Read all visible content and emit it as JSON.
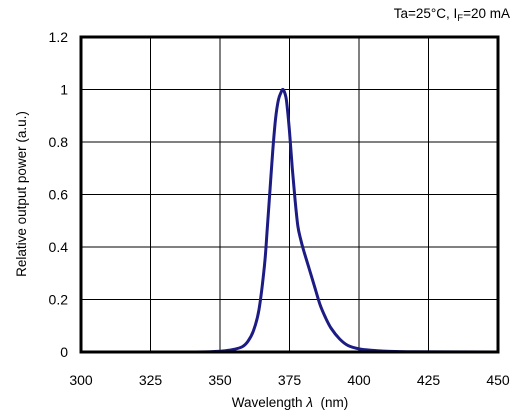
{
  "chart_data": {
    "type": "line",
    "title": "",
    "annotation": {
      "prefix": "Ta=25°C, I",
      "subscript": "F",
      "suffix": "=20 mA"
    },
    "xlabel": {
      "prefix": "Wavelength ",
      "symbol": "λ",
      "suffix": "  (nm)"
    },
    "ylabel": "Relative output power (a.u.)",
    "xlim": [
      300,
      450
    ],
    "ylim": [
      0,
      1.2
    ],
    "xticks": [
      "300",
      "325",
      "350",
      "375",
      "400",
      "425",
      "450"
    ],
    "yticks": [
      "0",
      "0.2",
      "0.4",
      "0.6",
      "0.8",
      "1",
      "1.2"
    ],
    "grid": true,
    "line_color": "#1c1c84",
    "series": [
      {
        "x": [
          300,
          340,
          348,
          352,
          355,
          358,
          360,
          362,
          364,
          366,
          367,
          368,
          369,
          370,
          371,
          372,
          372.5,
          373,
          373.5,
          374,
          375,
          376,
          377,
          378,
          379,
          380,
          382,
          384,
          386,
          388,
          390,
          393,
          396,
          400,
          405,
          410,
          420,
          450
        ],
        "y": [
          0,
          0,
          0.002,
          0.005,
          0.01,
          0.02,
          0.04,
          0.08,
          0.16,
          0.33,
          0.47,
          0.62,
          0.77,
          0.89,
          0.96,
          0.99,
          1.0,
          0.995,
          0.98,
          0.95,
          0.84,
          0.7,
          0.58,
          0.48,
          0.43,
          0.39,
          0.32,
          0.25,
          0.18,
          0.13,
          0.09,
          0.05,
          0.025,
          0.012,
          0.006,
          0.003,
          0.001,
          0
        ]
      }
    ]
  }
}
